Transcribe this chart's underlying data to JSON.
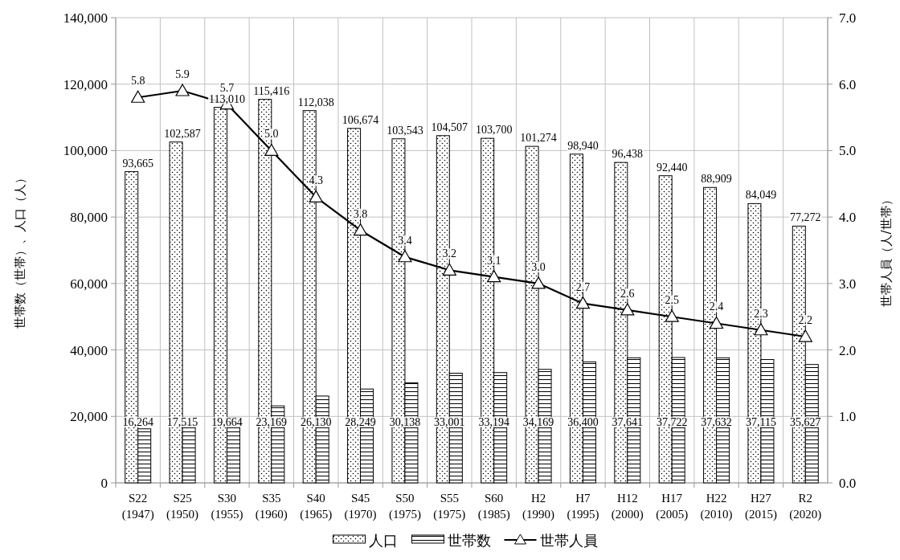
{
  "chart_data": {
    "type": "bar",
    "categories": [
      "S22\n(1947)",
      "S25\n(1950)",
      "S30\n(1955)",
      "S35\n(1960)",
      "S40\n(1965)",
      "S45\n(1970)",
      "S50\n(1975)",
      "S55\n(1975)",
      "S60\n(1985)",
      "H2\n(1990)",
      "H7\n(1995)",
      "H12\n(2000)",
      "H17\n(2005)",
      "H22\n(2010)",
      "H27\n(2015)",
      "R2\n(2020)"
    ],
    "ylabel": "世帯数（世帯）、人口（人）",
    "y2label": "世帯人員（人/世帯）",
    "ylim": [
      0,
      140000
    ],
    "yticks": [
      {
        "value": 0,
        "label": "0"
      },
      {
        "value": 20000,
        "label": "20,000"
      },
      {
        "value": 40000,
        "label": "40,000"
      },
      {
        "value": 60000,
        "label": "60,000"
      },
      {
        "value": 80000,
        "label": "80,000"
      },
      {
        "value": 100000,
        "label": "100,000"
      },
      {
        "value": 120000,
        "label": "120,000"
      },
      {
        "value": 140000,
        "label": "140,000"
      }
    ],
    "y2lim": [
      0,
      7
    ],
    "y2ticks": [
      {
        "value": 0,
        "label": "0.0"
      },
      {
        "value": 1,
        "label": "1.0"
      },
      {
        "value": 2,
        "label": "2.0"
      },
      {
        "value": 3,
        "label": "3.0"
      },
      {
        "value": 4,
        "label": "4.0"
      },
      {
        "value": 5,
        "label": "5.0"
      },
      {
        "value": 6,
        "label": "6.0"
      },
      {
        "value": 7,
        "label": "7.0"
      }
    ],
    "grid": true,
    "legend": "bottom",
    "series": [
      {
        "name": "人口",
        "color": "#000000",
        "values": [
          93665,
          102587,
          113010,
          115416,
          112038,
          106674,
          103543,
          104507,
          103700,
          101274,
          98940,
          96438,
          92440,
          88909,
          84049,
          77272
        ],
        "value_labels": [
          "93,665",
          "102,587",
          "113,010",
          "115,416",
          "112,038",
          "106,674",
          "103,543",
          "104,507",
          "103,700",
          "101,274",
          "98,940",
          "96,438",
          "92,440",
          "88,909",
          "84,049",
          "77,272"
        ]
      },
      {
        "name": "世帯数",
        "color": "#000000",
        "values": [
          16264,
          17515,
          19664,
          23169,
          26130,
          28249,
          30138,
          33001,
          33194,
          34169,
          36400,
          37641,
          37722,
          37632,
          37115,
          35627
        ],
        "value_labels": [
          "16,264",
          "17,515",
          "19,664",
          "23,169",
          "26,130",
          "28,249",
          "30,138",
          "33,001",
          "33,194",
          "34,169",
          "36,400",
          "37,641",
          "37,722",
          "37,632",
          "37,115",
          "35,627"
        ]
      },
      {
        "name": "世帯人員",
        "type": "line",
        "axis": "y2",
        "marker": "triangle",
        "color": "#000000",
        "values": [
          5.8,
          5.9,
          5.7,
          5.0,
          4.3,
          3.8,
          3.4,
          3.2,
          3.1,
          3.0,
          2.7,
          2.6,
          2.5,
          2.4,
          2.3,
          2.2
        ],
        "value_labels": [
          "5.8",
          "5.9",
          "5.7",
          "5.0",
          "4.3",
          "3.8",
          "3.4",
          "3.2",
          "3.1",
          "3.0",
          "2.7",
          "2.6",
          "2.5",
          "2.4",
          "2.3",
          "2.2"
        ]
      }
    ]
  }
}
